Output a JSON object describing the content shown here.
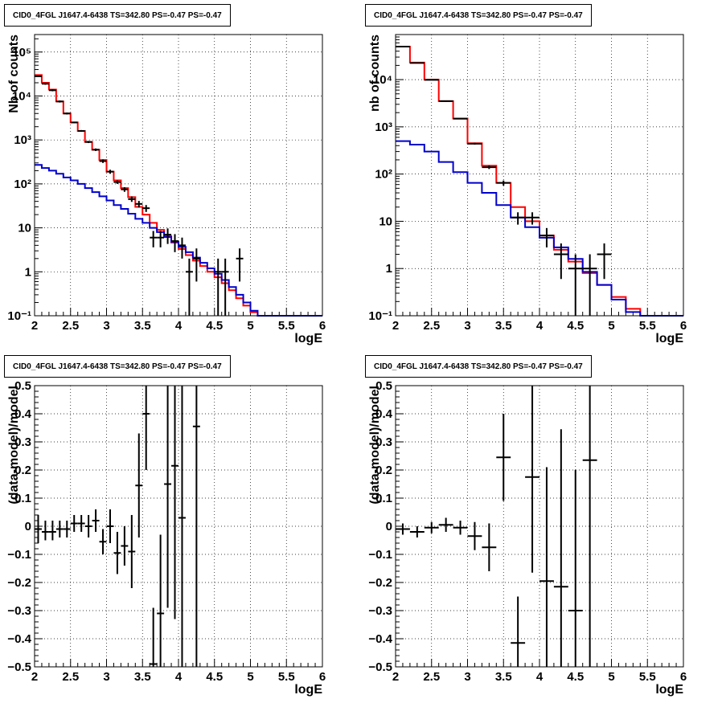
{
  "chart_data": [
    {
      "type": "histogram-log",
      "title": "CID0_4FGL J1647.4-6438 TS=342.80 PS=-0.47 PS=-0.47",
      "xlabel": "logE",
      "ylabel": "Nb of counts",
      "xlim": [
        2,
        6
      ],
      "ylim": [
        0.1,
        250000
      ],
      "log_y": true,
      "grid": true,
      "xticks": [
        "2",
        "2.5",
        "3",
        "3.5",
        "4",
        "4.5",
        "5",
        "5.5",
        "6"
      ],
      "yticks": [
        {
          "v": 0.1,
          "label": "10⁻¹"
        },
        {
          "v": 1,
          "label": "1"
        },
        {
          "v": 10,
          "label": "10"
        },
        {
          "v": 100,
          "label": "10²"
        },
        {
          "v": 1000,
          "label": "10³"
        },
        {
          "v": 10000,
          "label": "10⁴"
        },
        {
          "v": 100000,
          "label": "10⁵"
        }
      ],
      "bin_edges": [
        2,
        2.1,
        2.2,
        2.3,
        2.4,
        2.5,
        2.6,
        2.7,
        2.8,
        2.9,
        3.0,
        3.1,
        3.2,
        3.3,
        3.4,
        3.5,
        3.6,
        3.7,
        3.8,
        3.9,
        4.0,
        4.1,
        4.2,
        4.3,
        4.4,
        4.5,
        4.6,
        4.7,
        4.8,
        4.9,
        5.0,
        5.1,
        5.2,
        5.3,
        5.4,
        5.5,
        5.6,
        5.7,
        5.8,
        5.9,
        6.0
      ],
      "series": [
        {
          "color": "#ff0000",
          "values": [
            30000,
            20000,
            14000,
            7500,
            4000,
            2500,
            1600,
            900,
            600,
            350,
            190,
            120,
            80,
            50,
            30,
            20,
            13,
            9,
            6.5,
            4.6,
            3.3,
            2.4,
            1.8,
            1.35,
            1.0,
            0.75,
            0.55,
            0.38,
            0.25,
            0.17,
            0.12,
            0.1,
            0.1,
            0.1,
            0.1,
            0.1,
            0.1,
            0.1,
            0.1,
            0.1
          ]
        },
        {
          "color": "#0000cc",
          "values": [
            270,
            230,
            200,
            170,
            140,
            120,
            100,
            80,
            65,
            52,
            42,
            33,
            27,
            21,
            16,
            13,
            10,
            8,
            6.2,
            4.8,
            3.7,
            2.8,
            2.1,
            1.6,
            1.2,
            0.9,
            0.65,
            0.45,
            0.3,
            0.2,
            0.13,
            0.1,
            0.1,
            0.1,
            0.1,
            0.1,
            0.1,
            0.1,
            0.1,
            0.1
          ]
        }
      ],
      "data_points": [
        {
          "x": 2.05,
          "y": 28000,
          "xe": 0.05,
          "lo": 27000,
          "hi": 29000
        },
        {
          "x": 2.15,
          "y": 19000,
          "xe": 0.05,
          "lo": 18000,
          "hi": 20000
        },
        {
          "x": 2.25,
          "y": 13500,
          "xe": 0.05,
          "lo": 12800,
          "hi": 14200
        },
        {
          "x": 2.35,
          "y": 7500,
          "xe": 0.05,
          "lo": 7100,
          "hi": 7900
        },
        {
          "x": 2.45,
          "y": 4000,
          "xe": 0.05,
          "lo": 3800,
          "hi": 4200
        },
        {
          "x": 2.55,
          "y": 2500,
          "xe": 0.05,
          "lo": 2400,
          "hi": 2600
        },
        {
          "x": 2.65,
          "y": 1600,
          "xe": 0.05,
          "lo": 1530,
          "hi": 1680
        },
        {
          "x": 2.75,
          "y": 900,
          "xe": 0.05,
          "lo": 850,
          "hi": 950
        },
        {
          "x": 2.85,
          "y": 600,
          "xe": 0.05,
          "lo": 560,
          "hi": 640
        },
        {
          "x": 2.95,
          "y": 330,
          "xe": 0.05,
          "lo": 300,
          "hi": 360
        },
        {
          "x": 3.05,
          "y": 190,
          "xe": 0.05,
          "lo": 170,
          "hi": 210
        },
        {
          "x": 3.15,
          "y": 110,
          "xe": 0.05,
          "lo": 100,
          "hi": 120
        },
        {
          "x": 3.25,
          "y": 75,
          "xe": 0.05,
          "lo": 66,
          "hi": 84
        },
        {
          "x": 3.35,
          "y": 45,
          "xe": 0.05,
          "lo": 39,
          "hi": 52
        },
        {
          "x": 3.45,
          "y": 35,
          "xe": 0.05,
          "lo": 29,
          "hi": 41
        },
        {
          "x": 3.55,
          "y": 28,
          "xe": 0.05,
          "lo": 23,
          "hi": 33
        },
        {
          "x": 3.65,
          "y": 6,
          "xe": 0.05,
          "lo": 3.6,
          "hi": 8.5
        },
        {
          "x": 3.75,
          "y": 6,
          "xe": 0.05,
          "lo": 3.6,
          "hi": 8.5
        },
        {
          "x": 3.85,
          "y": 7,
          "xe": 0.05,
          "lo": 4.3,
          "hi": 9.7
        },
        {
          "x": 3.95,
          "y": 5,
          "xe": 0.05,
          "lo": 2.8,
          "hi": 7.2
        },
        {
          "x": 4.05,
          "y": 4,
          "xe": 0.05,
          "lo": 2,
          "hi": 6
        },
        {
          "x": 4.15,
          "y": 1,
          "xe": 0.05,
          "lo": 0.1,
          "hi": 2
        },
        {
          "x": 4.25,
          "y": 2,
          "xe": 0.05,
          "lo": 0.6,
          "hi": 3.4
        },
        {
          "x": 4.55,
          "y": 1,
          "xe": 0.05,
          "lo": 0.1,
          "hi": 2
        },
        {
          "x": 4.65,
          "y": 1,
          "xe": 0.05,
          "lo": 0.1,
          "hi": 2
        },
        {
          "x": 4.85,
          "y": 2,
          "xe": 0.05,
          "lo": 0.6,
          "hi": 3.4
        }
      ]
    },
    {
      "type": "histogram-log",
      "title": "CID0_4FGL J1647.4-6438 TS=342.80 PS=-0.47 PS=-0.47",
      "xlabel": "logE",
      "ylabel": "nb of counts",
      "xlim": [
        2,
        6
      ],
      "ylim": [
        0.1,
        90000
      ],
      "log_y": true,
      "grid": true,
      "xticks": [
        "2",
        "2.5",
        "3",
        "3.5",
        "4",
        "4.5",
        "5",
        "5.5",
        "6"
      ],
      "yticks": [
        {
          "v": 0.1,
          "label": "10⁻¹"
        },
        {
          "v": 1,
          "label": "1"
        },
        {
          "v": 10,
          "label": "10"
        },
        {
          "v": 100,
          "label": "10²"
        },
        {
          "v": 1000,
          "label": "10³"
        },
        {
          "v": 10000,
          "label": "10⁴"
        }
      ],
      "bin_edges": [
        2,
        2.2,
        2.4,
        2.6,
        2.8,
        3.0,
        3.2,
        3.4,
        3.6,
        3.8,
        4.0,
        4.2,
        4.4,
        4.6,
        4.8,
        5.0,
        5.2,
        5.4,
        5.6,
        5.8,
        6.0
      ],
      "series": [
        {
          "color": "#ff0000",
          "values": [
            50000,
            23000,
            10000,
            3500,
            1500,
            450,
            150,
            65,
            20,
            10,
            5,
            2.5,
            1.4,
            0.8,
            0.45,
            0.25,
            0.14,
            0.1,
            0.1,
            0.1
          ]
        },
        {
          "color": "#0000cc",
          "values": [
            500,
            420,
            300,
            180,
            110,
            65,
            40,
            22,
            12,
            7.5,
            4.5,
            2.8,
            1.6,
            0.85,
            0.45,
            0.22,
            0.12,
            0.1,
            0.1,
            0.1
          ]
        }
      ],
      "data_points": [
        {
          "x": 2.1,
          "y": 50000,
          "xe": 0.1,
          "lo": 49000,
          "hi": 51000
        },
        {
          "x": 2.3,
          "y": 22500,
          "xe": 0.1,
          "lo": 22000,
          "hi": 23000
        },
        {
          "x": 2.5,
          "y": 9900,
          "xe": 0.1,
          "lo": 9700,
          "hi": 10100
        },
        {
          "x": 2.7,
          "y": 3500,
          "xe": 0.1,
          "lo": 3400,
          "hi": 3600
        },
        {
          "x": 2.9,
          "y": 1490,
          "xe": 0.1,
          "lo": 1450,
          "hi": 1530
        },
        {
          "x": 3.1,
          "y": 440,
          "xe": 0.1,
          "lo": 420,
          "hi": 460
        },
        {
          "x": 3.3,
          "y": 140,
          "xe": 0.1,
          "lo": 128,
          "hi": 152
        },
        {
          "x": 3.5,
          "y": 65,
          "xe": 0.1,
          "lo": 57,
          "hi": 73
        },
        {
          "x": 3.7,
          "y": 12,
          "xe": 0.1,
          "lo": 8.5,
          "hi": 15.5
        },
        {
          "x": 3.9,
          "y": 12,
          "xe": 0.1,
          "lo": 8.5,
          "hi": 15.5
        },
        {
          "x": 4.1,
          "y": 5,
          "xe": 0.1,
          "lo": 2.8,
          "hi": 7.2
        },
        {
          "x": 4.3,
          "y": 2,
          "xe": 0.1,
          "lo": 0.6,
          "hi": 3.4
        },
        {
          "x": 4.5,
          "y": 1,
          "xe": 0.1,
          "lo": 0.1,
          "hi": 2
        },
        {
          "x": 4.7,
          "y": 1,
          "xe": 0.1,
          "lo": 0.1,
          "hi": 2
        },
        {
          "x": 4.9,
          "y": 2,
          "xe": 0.1,
          "lo": 0.6,
          "hi": 3.4
        }
      ]
    },
    {
      "type": "scatter-errorbars",
      "title": "CID0_4FGL J1647.4-6438 TS=342.80 PS=-0.47 PS=-0.47",
      "xlabel": "logE",
      "ylabel": "(data-model)/model",
      "xlim": [
        2,
        6
      ],
      "ylim": [
        -0.5,
        0.5
      ],
      "log_y": false,
      "grid": true,
      "xticks": [
        "2",
        "2.5",
        "3",
        "3.5",
        "4",
        "4.5",
        "5",
        "5.5",
        "6"
      ],
      "yticks": [
        {
          "v": -0.5,
          "label": "−0.5"
        },
        {
          "v": -0.4,
          "label": "−0.4"
        },
        {
          "v": -0.3,
          "label": "−0.3"
        },
        {
          "v": -0.2,
          "label": "−0.2"
        },
        {
          "v": -0.1,
          "label": "−0.1"
        },
        {
          "v": 0,
          "label": "0"
        },
        {
          "v": 0.1,
          "label": "0.1"
        },
        {
          "v": 0.2,
          "label": "0.2"
        },
        {
          "v": 0.3,
          "label": "0.3"
        },
        {
          "v": 0.4,
          "label": "0.4"
        },
        {
          "v": 0.5,
          "label": "0.5"
        }
      ],
      "data_points": [
        {
          "x": 2.05,
          "y": -0.01,
          "xe": 0.05,
          "lo": -0.06,
          "hi": 0.04
        },
        {
          "x": 2.15,
          "y": -0.02,
          "xe": 0.05,
          "lo": -0.05,
          "hi": 0.02
        },
        {
          "x": 2.25,
          "y": -0.02,
          "xe": 0.05,
          "lo": -0.05,
          "hi": 0.02
        },
        {
          "x": 2.35,
          "y": -0.01,
          "xe": 0.05,
          "lo": -0.04,
          "hi": 0.02
        },
        {
          "x": 2.45,
          "y": -0.01,
          "xe": 0.05,
          "lo": -0.04,
          "hi": 0.02
        },
        {
          "x": 2.55,
          "y": 0.01,
          "xe": 0.05,
          "lo": -0.02,
          "hi": 0.04
        },
        {
          "x": 2.65,
          "y": 0.01,
          "xe": 0.05,
          "lo": -0.02,
          "hi": 0.04
        },
        {
          "x": 2.75,
          "y": 0.0,
          "xe": 0.05,
          "lo": -0.04,
          "hi": 0.04
        },
        {
          "x": 2.85,
          "y": 0.02,
          "xe": 0.05,
          "lo": -0.02,
          "hi": 0.06
        },
        {
          "x": 2.95,
          "y": -0.055,
          "xe": 0.05,
          "lo": -0.1,
          "hi": -0.01
        },
        {
          "x": 3.05,
          "y": 0.0,
          "xe": 0.05,
          "lo": -0.06,
          "hi": 0.06
        },
        {
          "x": 3.15,
          "y": -0.095,
          "xe": 0.05,
          "lo": -0.17,
          "hi": -0.02
        },
        {
          "x": 3.25,
          "y": -0.07,
          "xe": 0.05,
          "lo": -0.14,
          "hi": 0.0
        },
        {
          "x": 3.35,
          "y": -0.09,
          "xe": 0.05,
          "lo": -0.22,
          "hi": 0.04
        },
        {
          "x": 3.45,
          "y": 0.145,
          "xe": 0.05,
          "lo": -0.04,
          "hi": 0.33
        },
        {
          "x": 3.55,
          "y": 0.4,
          "xe": 0.05,
          "lo": 0.2,
          "hi": 0.6
        },
        {
          "x": 3.65,
          "y": -0.49,
          "xe": 0.05,
          "lo": -0.6,
          "hi": -0.29
        },
        {
          "x": 3.75,
          "y": -0.31,
          "xe": 0.05,
          "lo": -0.6,
          "hi": -0.03
        },
        {
          "x": 3.85,
          "y": 0.15,
          "xe": 0.05,
          "lo": -0.29,
          "hi": 0.6
        },
        {
          "x": 3.95,
          "y": 0.215,
          "xe": 0.05,
          "lo": -0.33,
          "hi": 0.6
        },
        {
          "x": 4.05,
          "y": 0.03,
          "xe": 0.05,
          "lo": -0.6,
          "hi": 0.6
        },
        {
          "x": 4.25,
          "y": 0.355,
          "xe": 0.05,
          "lo": -0.6,
          "hi": 0.6
        }
      ]
    },
    {
      "type": "scatter-errorbars",
      "title": "CID0_4FGL J1647.4-6438 TS=342.80 PS=-0.47 PS=-0.47",
      "xlabel": "logE",
      "ylabel": "(data-model)/model",
      "xlim": [
        2,
        6
      ],
      "ylim": [
        -0.5,
        0.5
      ],
      "log_y": false,
      "grid": true,
      "xticks": [
        "2",
        "2.5",
        "3",
        "3.5",
        "4",
        "4.5",
        "5",
        "5.5",
        "6"
      ],
      "yticks": [
        {
          "v": -0.5,
          "label": "−0.5"
        },
        {
          "v": -0.4,
          "label": "−0.4"
        },
        {
          "v": -0.3,
          "label": "−0.3"
        },
        {
          "v": -0.2,
          "label": "−0.2"
        },
        {
          "v": -0.1,
          "label": "−0.1"
        },
        {
          "v": 0,
          "label": "0"
        },
        {
          "v": 0.1,
          "label": "0.1"
        },
        {
          "v": 0.2,
          "label": "0.2"
        },
        {
          "v": 0.3,
          "label": "0.3"
        },
        {
          "v": 0.4,
          "label": "0.4"
        },
        {
          "v": 0.5,
          "label": "0.5"
        }
      ],
      "data_points": [
        {
          "x": 2.1,
          "y": -0.01,
          "xe": 0.1,
          "lo": -0.03,
          "hi": 0.01
        },
        {
          "x": 2.3,
          "y": -0.02,
          "xe": 0.1,
          "lo": -0.04,
          "hi": 0.0
        },
        {
          "x": 2.5,
          "y": -0.005,
          "xe": 0.1,
          "lo": -0.025,
          "hi": 0.015
        },
        {
          "x": 2.7,
          "y": 0.005,
          "xe": 0.1,
          "lo": -0.02,
          "hi": 0.03
        },
        {
          "x": 2.9,
          "y": -0.005,
          "xe": 0.1,
          "lo": -0.03,
          "hi": 0.02
        },
        {
          "x": 3.1,
          "y": -0.035,
          "xe": 0.1,
          "lo": -0.085,
          "hi": 0.015
        },
        {
          "x": 3.3,
          "y": -0.075,
          "xe": 0.1,
          "lo": -0.16,
          "hi": 0.01
        },
        {
          "x": 3.5,
          "y": 0.245,
          "xe": 0.1,
          "lo": 0.09,
          "hi": 0.4
        },
        {
          "x": 3.7,
          "y": -0.415,
          "xe": 0.1,
          "lo": -0.6,
          "hi": -0.25
        },
        {
          "x": 3.9,
          "y": 0.175,
          "xe": 0.1,
          "lo": -0.165,
          "hi": 0.6
        },
        {
          "x": 4.1,
          "y": -0.195,
          "xe": 0.1,
          "lo": -0.6,
          "hi": 0.21
        },
        {
          "x": 4.3,
          "y": -0.215,
          "xe": 0.1,
          "lo": -0.6,
          "hi": 0.345
        },
        {
          "x": 4.5,
          "y": -0.3,
          "xe": 0.1,
          "lo": -0.6,
          "hi": 0.2
        },
        {
          "x": 4.7,
          "y": 0.235,
          "xe": 0.1,
          "lo": -0.6,
          "hi": 0.6
        }
      ]
    }
  ]
}
